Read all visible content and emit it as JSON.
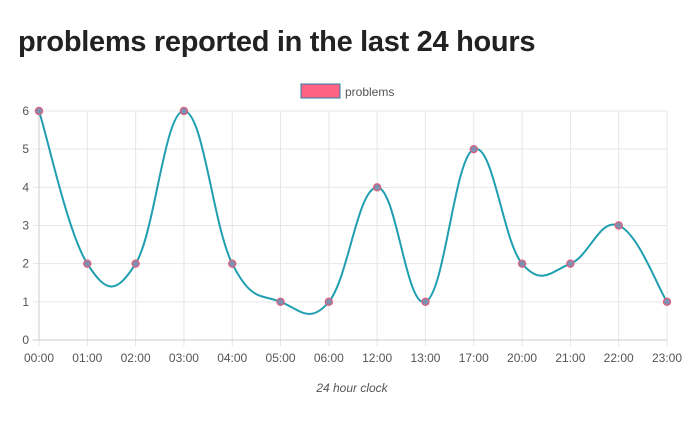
{
  "page": {
    "title": "problems reported in the last 24 hours"
  },
  "chart_data": {
    "type": "line",
    "title": "",
    "xlabel": "24 hour clock",
    "ylabel": "",
    "categories": [
      "00:00",
      "01:00",
      "02:00",
      "03:00",
      "04:00",
      "05:00",
      "06:00",
      "12:00",
      "13:00",
      "17:00",
      "20:00",
      "21:00",
      "22:00",
      "23:00"
    ],
    "series": [
      {
        "name": "problems",
        "values": [
          6,
          2,
          2,
          6,
          2,
          1,
          1,
          4,
          1,
          5,
          2,
          2,
          3,
          1
        ],
        "line_color": "#1f9fb0",
        "point_fill": "#7f8fb0",
        "point_stroke": "#e35d7d"
      }
    ],
    "ylim": [
      0,
      6
    ],
    "yticks": [
      0,
      1,
      2,
      3,
      4,
      5,
      6
    ],
    "grid": true,
    "legend": {
      "position": "top-center",
      "swatch_fill": "#ff6384",
      "swatch_stroke": "#2a7fa0"
    }
  }
}
